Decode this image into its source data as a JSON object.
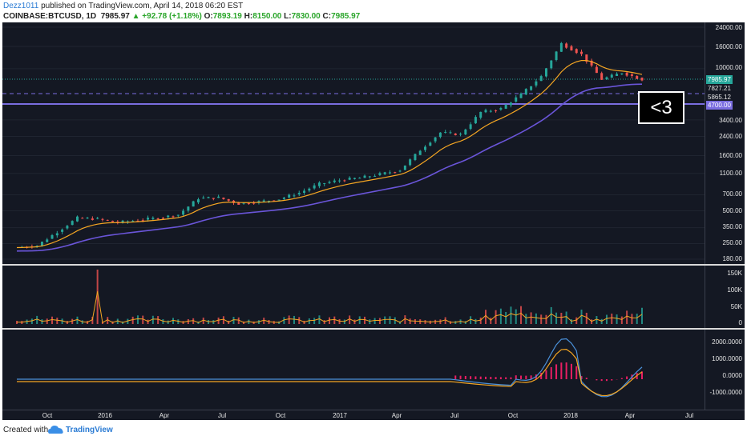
{
  "header": {
    "username": "Dezz1011",
    "published_text": "published on TradingView.com, April 14, 2018 06:20 EST",
    "symbol": "COINBASE:BTCUSD, 1D",
    "last": "7985.97",
    "change": "▲ +92.78 (+1.18%)",
    "o_label": "O:",
    "o_val": "7893.19",
    "h_label": "H:",
    "h_val": "8150.00",
    "l_label": "L:",
    "l_val": "7830.00",
    "c_label": "C:",
    "c_val": "7985.97"
  },
  "price_axis": [
    "24000.00",
    "16000.00",
    "10000.00",
    "3400.00",
    "2400.00",
    "1600.00",
    "1100.00",
    "700.00",
    "500.00",
    "350.00",
    "250.00",
    "180.00"
  ],
  "price_tags": {
    "last": "7985.97",
    "ema": "7827.21",
    "dashed": "5865.12",
    "support": "4700.00"
  },
  "volume_axis": [
    "150K",
    "100K",
    "50K",
    "0"
  ],
  "macd_axis": [
    "2000.0000",
    "1000.0000",
    "0.0000",
    "-1000.0000"
  ],
  "x_axis": [
    "Oct",
    "2016",
    "Apr",
    "Jul",
    "Oct",
    "2017",
    "Apr",
    "Jul",
    "Oct",
    "2018",
    "Apr",
    "Jul"
  ],
  "annotation": "<3",
  "footer": {
    "created_with": "Created with",
    "brand": "TradingView"
  },
  "colors": {
    "up": "#26a69a",
    "down": "#ef5350",
    "ema_fast": "#f5a623",
    "ema_slow": "#6a55d9",
    "support_line": "#7a6de0",
    "last_tag": "#26a69a",
    "support_tag": "#7a6de0"
  },
  "chart_data": {
    "type": "line",
    "scale": "log",
    "title": "COINBASE:BTCUSD, 1D",
    "x": [
      "2015-09",
      "2015-10",
      "2015-11",
      "2015-12",
      "2016-01",
      "2016-02",
      "2016-03",
      "2016-04",
      "2016-05",
      "2016-06",
      "2016-07",
      "2016-08",
      "2016-09",
      "2016-10",
      "2016-11",
      "2016-12",
      "2017-01",
      "2017-02",
      "2017-03",
      "2017-04",
      "2017-05",
      "2017-06",
      "2017-07",
      "2017-08",
      "2017-09",
      "2017-10",
      "2017-11",
      "2017-12",
      "2018-01",
      "2018-02",
      "2018-03",
      "2018-04"
    ],
    "series": [
      {
        "values": [
          230,
          240,
          320,
          430,
          420,
          390,
          410,
          430,
          460,
          650,
          660,
          580,
          605,
          640,
          730,
          880,
          950,
          1000,
          1080,
          1180,
          1800,
          2600,
          2500,
          4000,
          4300,
          5800,
          8500,
          17000,
          13500,
          8000,
          9200,
          7985
        ]
      }
    ],
    "ylim": [
      180,
      24000
    ],
    "horizontal_levels": [
      7985.97,
      5865.12,
      4700.0
    ]
  }
}
